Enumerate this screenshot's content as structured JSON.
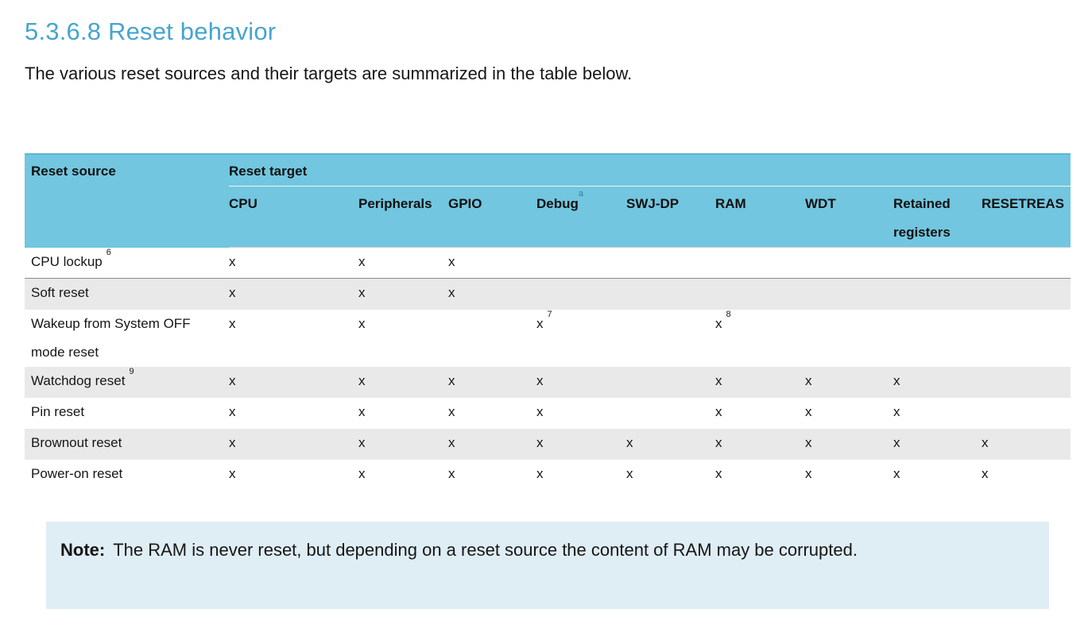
{
  "page": {
    "heading": "5.3.6.8 Reset behavior",
    "intro": "The various reset sources and their targets are summarized in the table below."
  },
  "table": {
    "reset_source_header": "Reset source",
    "reset_target_header": "Reset target",
    "columns": [
      "CPU",
      "Peripherals",
      "GPIO",
      "Debug",
      "SWJ-DP",
      "RAM",
      "WDT",
      "Retained registers",
      "RESETREAS"
    ],
    "debug_footnote": "a",
    "rows": [
      {
        "source": "CPU lockup",
        "source_sup": "6",
        "marks": [
          "x",
          "x",
          "x",
          "",
          "",
          "",
          "",
          "",
          ""
        ],
        "mark_sups": [
          "",
          "",
          "",
          "",
          "",
          "",
          "",
          "",
          ""
        ]
      },
      {
        "source": "Soft reset",
        "source_sup": "",
        "marks": [
          "x",
          "x",
          "x",
          "",
          "",
          "",
          "",
          "",
          ""
        ],
        "mark_sups": [
          "",
          "",
          "",
          "",
          "",
          "",
          "",
          "",
          ""
        ]
      },
      {
        "source": "Wakeup from System OFF mode reset",
        "source_sup": "",
        "marks": [
          "x",
          "x",
          "",
          "x",
          "",
          "x",
          "",
          "",
          ""
        ],
        "mark_sups": [
          "",
          "",
          "",
          "7",
          "",
          "8",
          "",
          "",
          ""
        ]
      },
      {
        "source": "Watchdog reset",
        "source_sup": "9",
        "marks": [
          "x",
          "x",
          "x",
          "x",
          "",
          "x",
          "x",
          "x",
          ""
        ],
        "mark_sups": [
          "",
          "",
          "",
          "",
          "",
          "",
          "",
          "",
          ""
        ]
      },
      {
        "source": "Pin reset",
        "source_sup": "",
        "marks": [
          "x",
          "x",
          "x",
          "x",
          "",
          "x",
          "x",
          "x",
          ""
        ],
        "mark_sups": [
          "",
          "",
          "",
          "",
          "",
          "",
          "",
          "",
          ""
        ]
      },
      {
        "source": "Brownout reset",
        "source_sup": "",
        "marks": [
          "x",
          "x",
          "x",
          "x",
          "x",
          "x",
          "x",
          "x",
          "x"
        ],
        "mark_sups": [
          "",
          "",
          "",
          "",
          "",
          "",
          "",
          "",
          ""
        ]
      },
      {
        "source": "Power-on reset",
        "source_sup": "",
        "marks": [
          "x",
          "x",
          "x",
          "x",
          "x",
          "x",
          "x",
          "x",
          "x"
        ],
        "mark_sups": [
          "",
          "",
          "",
          "",
          "",
          "",
          "",
          "",
          ""
        ]
      }
    ]
  },
  "note": {
    "label": "Note:",
    "text": "The RAM is never reset, but depending on a reset source the content of RAM may be corrupted."
  },
  "colors": {
    "heading_blue": "#46a5ce",
    "header_bg": "#72c6df",
    "row_alt_bg": "#e9e9e9",
    "note_bg": "#dfedf4",
    "footnote_blue": "#2e7da6",
    "text_color": "#161616"
  }
}
